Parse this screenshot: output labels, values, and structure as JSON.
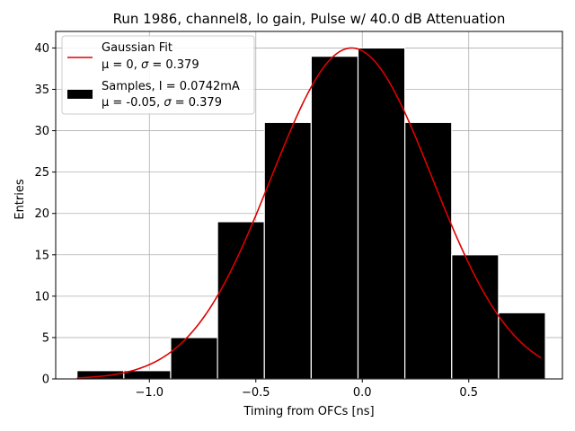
{
  "chart_data": {
    "type": "bar",
    "title": "Run 1986, channel8, lo gain, Pulse w/ 40.0 dB Attenuation",
    "xlabel": "Timing from OFCs [ns]",
    "ylabel": "Entries",
    "xlim": [
      -1.44,
      0.94
    ],
    "ylim": [
      0,
      42
    ],
    "xticks": [
      -1.0,
      -0.5,
      0.0,
      0.5
    ],
    "xtick_labels": [
      "−1.0",
      "−0.5",
      "0.0",
      "0.5"
    ],
    "yticks": [
      0,
      5,
      10,
      15,
      20,
      25,
      30,
      35,
      40
    ],
    "ytick_labels": [
      "0",
      "5",
      "10",
      "15",
      "20",
      "25",
      "30",
      "35",
      "40"
    ],
    "grid": true,
    "legend_position": "upper-left",
    "histogram": {
      "name": "Samples",
      "bin_edges": [
        -1.34,
        -1.12,
        -0.9,
        -0.68,
        -0.46,
        -0.24,
        -0.02,
        0.2,
        0.42,
        0.64,
        0.86
      ],
      "counts": [
        1,
        1,
        5,
        19,
        31,
        39,
        40,
        31,
        15,
        8
      ],
      "color": "#000000",
      "edge_color": "#ffffff"
    },
    "fit": {
      "name": "Gaussian Fit",
      "mean": -0.05,
      "sigma": 0.379,
      "amplitude": 40,
      "x_range": [
        -1.34,
        0.84
      ],
      "color": "#dd0000"
    },
    "legend": [
      {
        "kind": "line",
        "color": "#dd0000",
        "line1": "Gaussian Fit",
        "line2_prefix": "μ = 0, ",
        "line2_sigma": "σ",
        "line2_suffix": " = 0.379"
      },
      {
        "kind": "patch",
        "color": "#000000",
        "line1": "Samples, I = 0.0742mA",
        "line2_prefix": "μ = -0.05, ",
        "line2_sigma": "σ",
        "line2_suffix": " = 0.379"
      }
    ]
  }
}
